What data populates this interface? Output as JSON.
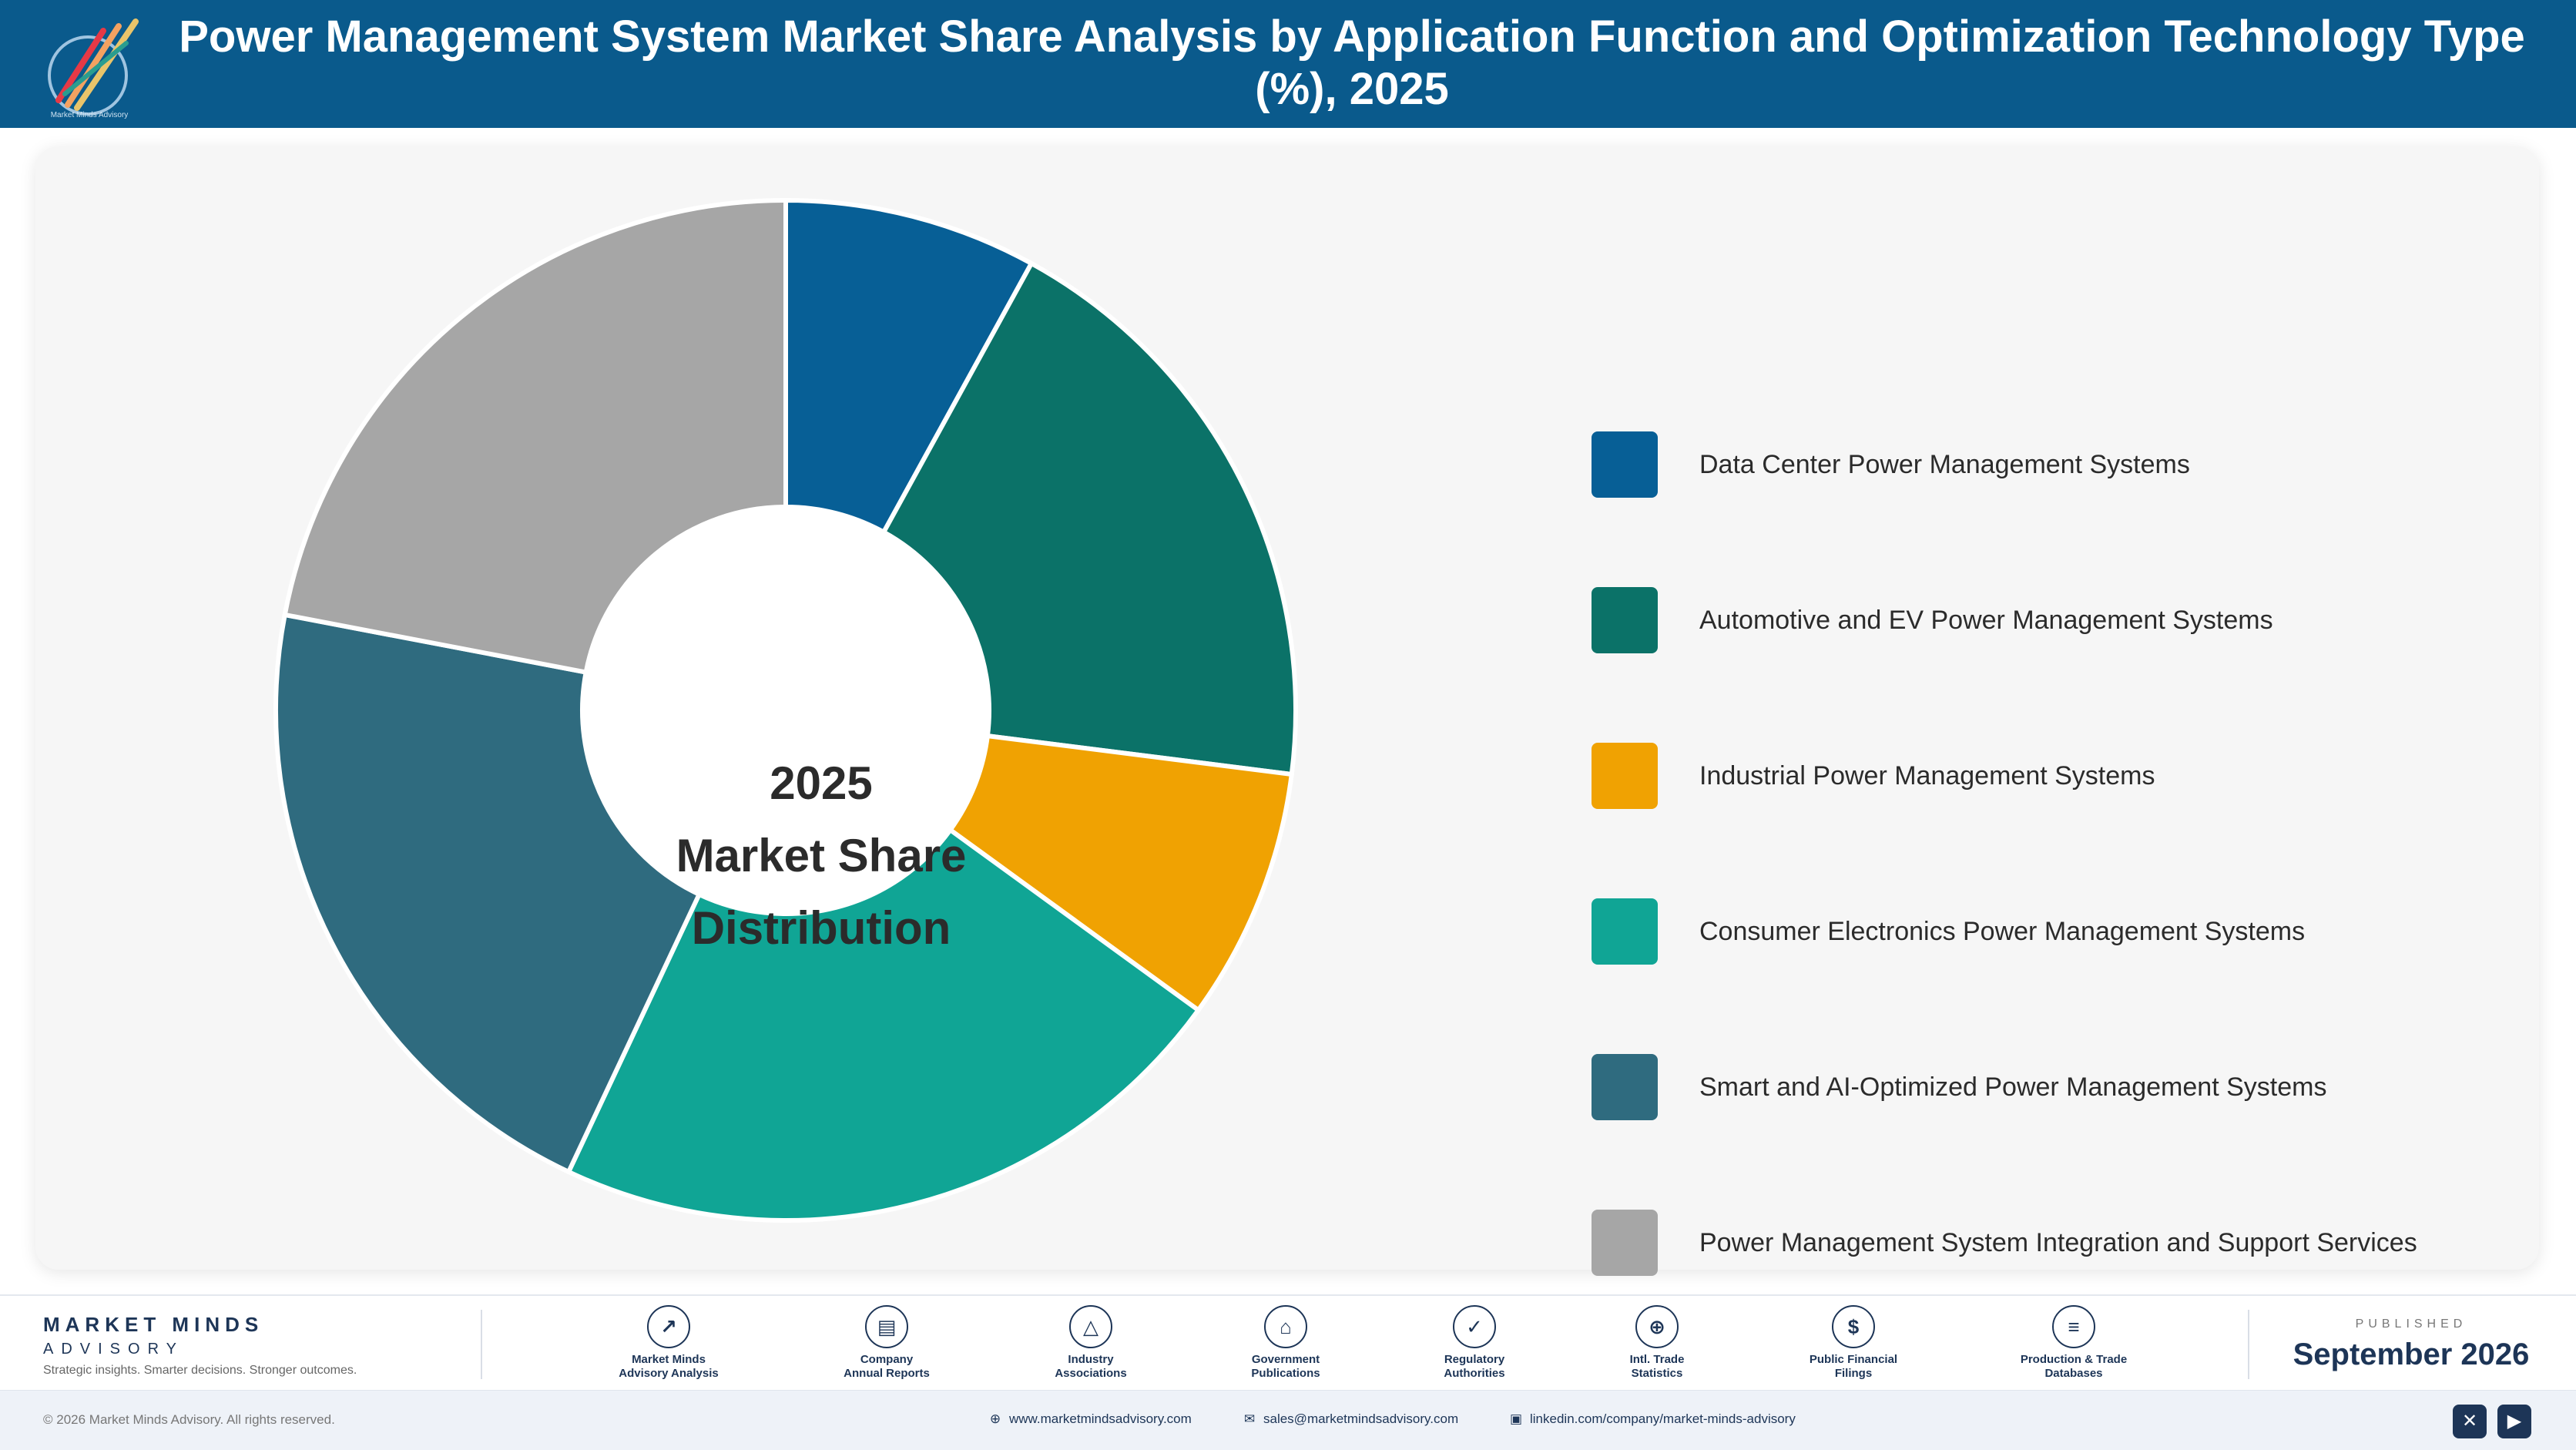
{
  "header": {
    "title": "Power Management System Market Share Analysis by Application Function and Optimization Technology Type (%), 2025",
    "logo_text": "Market Minds Advisory"
  },
  "chart_data": {
    "type": "pie",
    "variant": "donut",
    "title": "Power Management System Market Share Analysis by Application Function and Optimization Technology Type (%), 2025",
    "center_label": [
      "2025",
      "Market Share",
      "Distribution"
    ],
    "legend_position": "right",
    "categories": [
      "Data Center Power Management Systems",
      "Automotive and EV Power Management Systems",
      "Industrial Power Management Systems",
      "Consumer Electronics Power Management Systems",
      "Smart and AI-Optimized Power Management Systems",
      "Power Management System Integration and Support Services"
    ],
    "values": [
      8,
      19,
      8,
      22,
      21,
      22
    ],
    "unit": "%",
    "colors": [
      "#075f96",
      "#0b7268",
      "#f0a202",
      "#10a595",
      "#2f6b7f",
      "#a6a6a6"
    ]
  },
  "footer": {
    "brand_name": "MARKET MINDS",
    "brand_sub": "ADVISORY",
    "tagline": "Strategic insights. Smarter decisions. Stronger outcomes.",
    "sources": [
      {
        "label": "Market Minds\nAdvisory Analysis",
        "icon": "trend-icon",
        "glyph": "↗"
      },
      {
        "label": "Company\nAnnual Reports",
        "icon": "document-icon",
        "glyph": "▤"
      },
      {
        "label": "Industry\nAssociations",
        "icon": "network-icon",
        "glyph": "△"
      },
      {
        "label": "Government\nPublications",
        "icon": "bank-icon",
        "glyph": "⌂"
      },
      {
        "label": "Regulatory\nAuthorities",
        "icon": "shield-icon",
        "glyph": "✓"
      },
      {
        "label": "Intl. Trade\nStatistics",
        "icon": "globe-icon",
        "glyph": "⊕"
      },
      {
        "label": "Public Financial\nFilings",
        "icon": "dollar-icon",
        "glyph": "$"
      },
      {
        "label": "Production & Trade\nDatabases",
        "icon": "database-icon",
        "glyph": "≡"
      }
    ],
    "published_label": "PUBLISHED",
    "published_date": "September 2026"
  },
  "bottom_bar": {
    "copyright": "© 2026 Market Minds Advisory. All rights reserved.",
    "website": "www.marketmindsadvisory.com",
    "email": "sales@marketmindsadvisory.com",
    "linkedin": "linkedin.com/company/market-minds-advisory",
    "social": [
      "x-icon",
      "youtube-icon"
    ]
  }
}
